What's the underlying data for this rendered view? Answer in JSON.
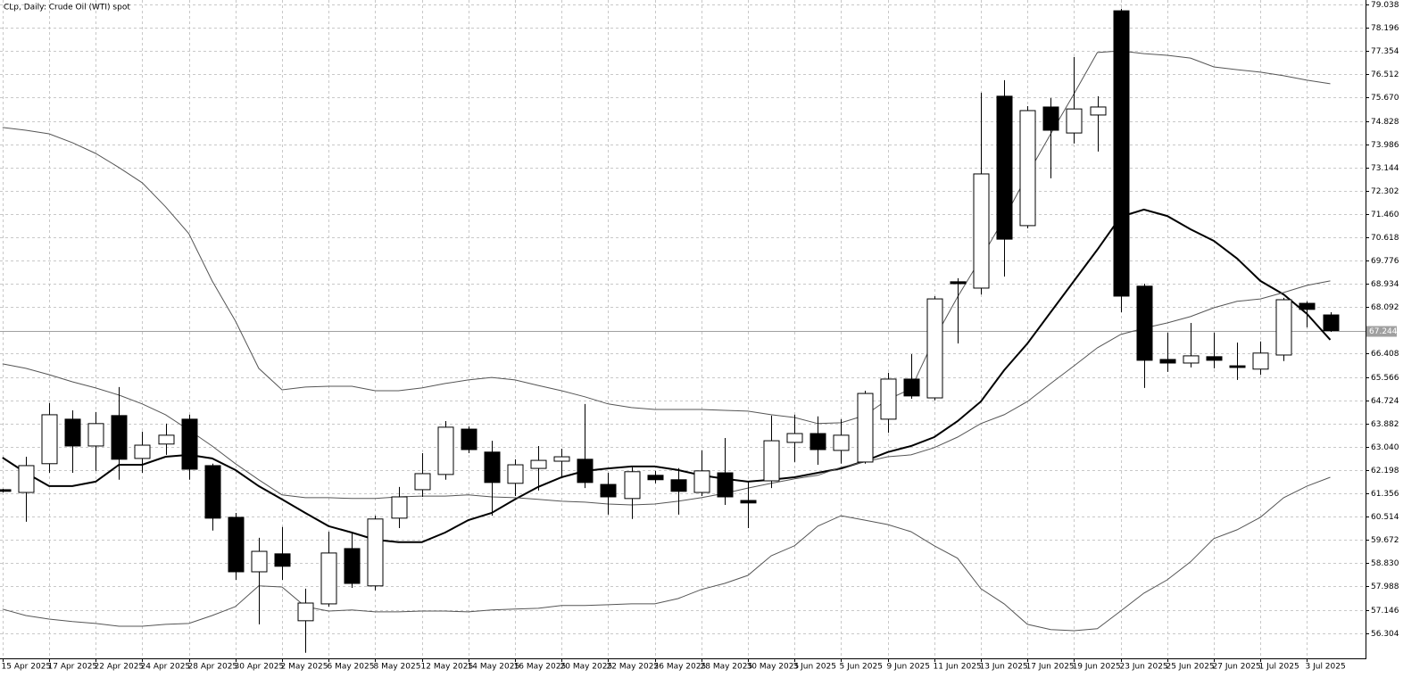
{
  "chart_data": {
    "type": "candlestick",
    "title": "CLp, Daily:  Crude Oil (WTI) spot",
    "categories": [
      "15 Apr 2025",
      null,
      "17 Apr 2025",
      null,
      "22 Apr 2025",
      null,
      "24 Apr 2025",
      null,
      "28 Apr 2025",
      null,
      "30 Apr 2025",
      null,
      "2 May 2025",
      null,
      "6 May 2025",
      null,
      "8 May 2025",
      null,
      "12 May 2025",
      null,
      "14 May 2025",
      null,
      "16 May 2025",
      null,
      "20 May 2025",
      null,
      "22 May 2025",
      null,
      "26 May 2025",
      null,
      "28 May 2025",
      null,
      "30 May 2025",
      null,
      "3 Jun 2025",
      null,
      "5 Jun 2025",
      null,
      "9 Jun 2025",
      null,
      "11 Jun 2025",
      null,
      "13 Jun 2025",
      null,
      "17 Jun 2025",
      null,
      "19 Jun 2025",
      null,
      "23 Jun 2025",
      null,
      "25 Jun 2025",
      null,
      "27 Jun 2025",
      null,
      "1 Jul 2025",
      null,
      "3 Jul 2025",
      null
    ],
    "open": [
      61.49,
      61.39,
      62.43,
      64.04,
      63.07,
      64.17,
      62.62,
      63.14,
      64.04,
      62.36,
      60.49,
      58.52,
      59.17,
      56.75,
      57.36,
      59.36,
      58.01,
      60.46,
      61.49,
      62.04,
      63.68,
      62.85,
      61.72,
      62.26,
      62.52,
      62.59,
      61.68,
      61.17,
      62.01,
      61.85,
      61.39,
      62.1,
      61.1,
      61.81,
      63.2,
      63.52,
      62.91,
      62.49,
      64.04,
      65.49,
      64.81,
      69.01,
      68.78,
      75.72,
      71.04,
      75.33,
      74.39,
      75.04,
      78.81,
      68.85,
      66.2,
      66.07,
      66.3,
      65.97,
      65.85,
      66.36,
      68.23,
      67.81
    ],
    "high": [
      61.52,
      62.68,
      64.62,
      64.36,
      64.3,
      65.2,
      63.59,
      63.88,
      64.2,
      62.43,
      60.65,
      59.75,
      60.14,
      57.91,
      59.97,
      59.91,
      60.55,
      61.59,
      62.81,
      63.97,
      63.78,
      63.26,
      62.59,
      63.07,
      62.97,
      64.59,
      62.1,
      62.3,
      62.17,
      62.27,
      62.91,
      63.36,
      61.78,
      64.17,
      64.2,
      64.14,
      64.04,
      65.07,
      65.72,
      66.39,
      68.49,
      69.14,
      75.85,
      76.3,
      75.36,
      75.65,
      77.14,
      75.72,
      78.88,
      68.94,
      67.17,
      67.52,
      67.17,
      66.81,
      66.85,
      68.43,
      68.3,
      67.91
    ],
    "low": [
      61.39,
      60.33,
      62.1,
      62.1,
      62.17,
      61.85,
      62.1,
      62.75,
      61.85,
      60.01,
      58.23,
      56.62,
      58.23,
      55.59,
      57.26,
      57.94,
      57.85,
      60.1,
      61.23,
      61.85,
      62.81,
      60.55,
      61.26,
      61.46,
      61.94,
      61.55,
      60.59,
      60.43,
      61.72,
      60.59,
      61.26,
      60.94,
      60.1,
      61.55,
      62.49,
      62.39,
      62.43,
      62.43,
      63.55,
      64.78,
      64.72,
      66.78,
      68.55,
      69.2,
      70.94,
      72.75,
      74.01,
      73.72,
      67.91,
      65.17,
      65.75,
      65.91,
      65.88,
      65.46,
      65.65,
      66.14,
      67.36,
      67.2
    ],
    "close": [
      61.43,
      62.36,
      64.2,
      63.07,
      63.88,
      62.59,
      63.1,
      63.46,
      62.23,
      60.46,
      58.52,
      59.26,
      58.72,
      57.39,
      59.2,
      58.1,
      60.43,
      61.23,
      62.07,
      63.75,
      62.94,
      61.75,
      62.39,
      62.55,
      62.68,
      61.75,
      61.23,
      62.14,
      61.85,
      61.43,
      62.17,
      61.23,
      61.01,
      63.26,
      63.52,
      62.94,
      63.46,
      64.97,
      65.49,
      64.88,
      68.39,
      68.94,
      72.91,
      70.55,
      75.2,
      74.49,
      75.26,
      75.33,
      68.49,
      66.17,
      66.07,
      66.33,
      66.17,
      65.91,
      66.43,
      68.36,
      68.01,
      67.244
    ],
    "up_color": "#ffffff",
    "down_color": "#000000",
    "lines": [
      {
        "color": "#000000",
        "line_width": 2,
        "values": [
          62.65,
          62.1,
          61.62,
          61.62,
          61.78,
          62.39,
          62.39,
          62.68,
          62.75,
          62.62,
          62.2,
          61.62,
          61.14,
          60.65,
          60.17,
          59.94,
          59.68,
          59.59,
          59.59,
          59.94,
          60.39,
          60.65,
          61.14,
          61.59,
          61.94,
          62.17,
          62.26,
          62.33,
          62.33,
          62.2,
          62.01,
          61.88,
          61.78,
          61.85,
          61.94,
          62.1,
          62.26,
          62.52,
          62.85,
          63.07,
          63.39,
          63.97,
          64.68,
          65.81,
          66.78,
          67.91,
          69.04,
          70.17,
          71.36,
          71.62,
          71.39,
          70.91,
          70.49,
          69.85,
          69.04,
          68.55,
          67.85,
          66.91
        ]
      },
      {
        "color": "#555555",
        "line_width": 1,
        "values": [
          74.59,
          74.49,
          74.36,
          74.04,
          73.65,
          73.14,
          72.59,
          71.72,
          70.75,
          69.04,
          67.59,
          65.88,
          65.1,
          65.2,
          65.23,
          65.23,
          65.07,
          65.07,
          65.17,
          65.33,
          65.46,
          65.55,
          65.46,
          65.26,
          65.07,
          64.85,
          64.59,
          64.46,
          64.39,
          64.39,
          64.39,
          64.36,
          64.33,
          64.2,
          64.1,
          63.88,
          63.91,
          64.17,
          64.75,
          65.14,
          66.94,
          68.46,
          69.85,
          71.3,
          72.88,
          74.36,
          75.81,
          77.3,
          77.36,
          77.26,
          77.2,
          77.1,
          76.78,
          76.68,
          76.59,
          76.46,
          76.3,
          76.17
        ]
      },
      {
        "color": "#555555",
        "line_width": 1,
        "values": [
          66.04,
          65.88,
          65.65,
          65.39,
          65.17,
          64.91,
          64.59,
          64.2,
          63.65,
          63.07,
          62.43,
          61.85,
          61.3,
          61.2,
          61.2,
          61.17,
          61.17,
          61.23,
          61.26,
          61.26,
          61.3,
          61.23,
          61.2,
          61.14,
          61.07,
          61.04,
          60.97,
          60.94,
          60.97,
          61.07,
          61.2,
          61.36,
          61.55,
          61.72,
          61.88,
          62.01,
          62.3,
          62.49,
          62.68,
          62.75,
          63.01,
          63.39,
          63.88,
          64.2,
          64.68,
          65.33,
          65.97,
          66.62,
          67.1,
          67.33,
          67.52,
          67.75,
          68.07,
          68.3,
          68.39,
          68.62,
          68.88,
          69.04
        ]
      },
      {
        "color": "#555555",
        "line_width": 1,
        "values": [
          57.17,
          56.94,
          56.81,
          56.72,
          56.65,
          56.55,
          56.55,
          56.62,
          56.65,
          56.94,
          57.26,
          58.01,
          57.97,
          57.26,
          57.1,
          57.14,
          57.07,
          57.07,
          57.1,
          57.1,
          57.07,
          57.14,
          57.17,
          57.2,
          57.3,
          57.3,
          57.33,
          57.36,
          57.36,
          57.55,
          57.88,
          58.1,
          58.39,
          59.1,
          59.46,
          60.17,
          60.55,
          60.39,
          60.23,
          59.97,
          59.46,
          59.01,
          57.91,
          57.36,
          56.62,
          56.43,
          56.39,
          56.46,
          57.1,
          57.75,
          58.23,
          58.88,
          59.72,
          60.04,
          60.49,
          61.2,
          61.62,
          61.94
        ]
      }
    ],
    "last_price": 67.244,
    "ylim": [
      55.39,
      79.2
    ],
    "yticks": [
      79.038,
      78.196,
      77.354,
      76.512,
      {
        "value": 75.67,
        "label": "75.670"
      },
      74.828,
      73.986,
      73.144,
      72.302,
      {
        "value": 71.46,
        "label": "71.460"
      },
      70.618,
      69.776,
      68.934,
      68.092,
      66.408,
      65.566,
      64.724,
      63.882,
      {
        "value": 63.04,
        "label": "63.040"
      },
      62.198,
      61.356,
      60.514,
      59.672,
      {
        "value": 58.83,
        "label": "58.830"
      },
      57.988,
      57.146,
      56.304
    ],
    "grid": true
  }
}
